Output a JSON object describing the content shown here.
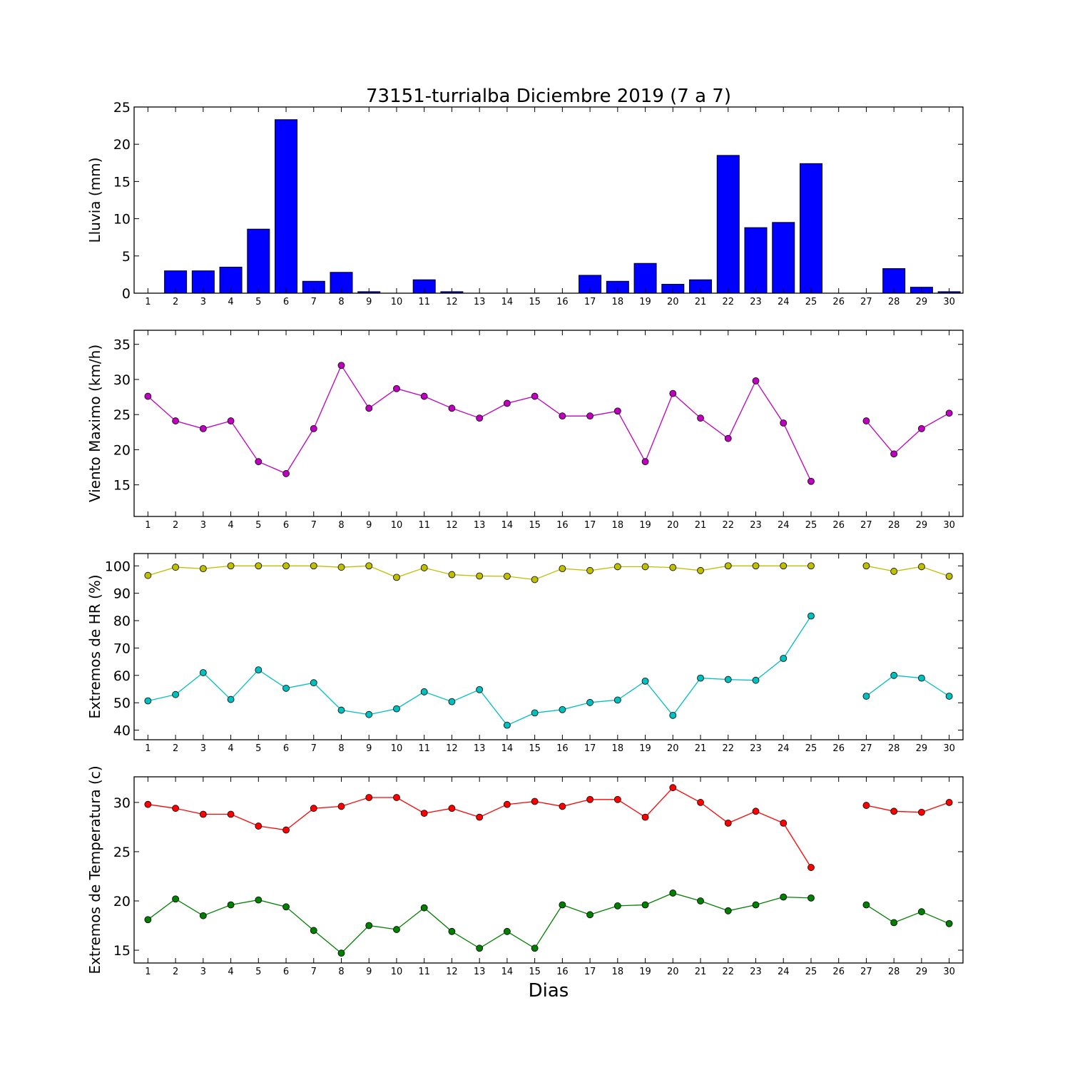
{
  "title": "73151-turrialba Diciembre 2019  (7 a 7)",
  "xlabel": "Dias",
  "days": [
    1,
    2,
    3,
    4,
    5,
    6,
    7,
    8,
    9,
    10,
    11,
    12,
    13,
    14,
    15,
    16,
    17,
    18,
    19,
    20,
    21,
    22,
    23,
    24,
    25,
    26,
    27,
    28,
    29,
    30
  ],
  "chart_data": [
    {
      "type": "bar",
      "ylabel": "Lluvia (mm)",
      "ylim": [
        0,
        25
      ],
      "yticks": [
        0,
        5,
        10,
        15,
        20,
        25
      ],
      "series": [
        {
          "color": "#0000ff",
          "values": [
            0,
            3.0,
            3.0,
            3.5,
            8.6,
            23.3,
            1.6,
            2.8,
            0.2,
            0,
            1.8,
            0.2,
            0,
            0,
            0,
            0,
            2.4,
            1.6,
            4.0,
            1.2,
            1.8,
            18.5,
            8.8,
            9.5,
            17.4,
            0,
            0,
            3.3,
            0.8,
            0.2
          ]
        }
      ]
    },
    {
      "type": "line",
      "ylabel": "Viento Maximo (km/h)",
      "ylim": [
        10.5,
        37
      ],
      "yticks": [
        15,
        20,
        25,
        30,
        35
      ],
      "series": [
        {
          "color": "#bf00bf",
          "values": [
            27.6,
            24.1,
            23.0,
            24.1,
            18.3,
            16.6,
            23.0,
            32.0,
            25.9,
            28.7,
            27.6,
            25.9,
            24.5,
            26.6,
            27.6,
            24.8,
            24.8,
            25.5,
            18.3,
            28.0,
            24.5,
            21.6,
            29.8,
            23.8,
            15.5,
            null,
            24.1,
            19.4,
            23.0,
            25.2
          ]
        }
      ]
    },
    {
      "type": "line",
      "ylabel": "Extremos de HR (%)",
      "ylim": [
        36.5,
        104.5
      ],
      "yticks": [
        40,
        50,
        60,
        70,
        80,
        90,
        100
      ],
      "series": [
        {
          "color": "#bfbf00",
          "values": [
            96.5,
            99.5,
            99.0,
            100,
            100,
            100,
            100,
            99.5,
            100,
            95.8,
            99.3,
            96.8,
            96.3,
            96.2,
            95.0,
            99.0,
            98.3,
            99.7,
            99.7,
            99.4,
            98.3,
            100,
            100,
            100,
            100,
            null,
            100,
            98.0,
            99.7,
            96.2
          ]
        },
        {
          "color": "#00bfbf",
          "values": [
            50.7,
            53.0,
            61.0,
            51.2,
            62.0,
            55.3,
            57.3,
            47.3,
            45.7,
            47.8,
            54.0,
            50.4,
            54.8,
            41.8,
            46.3,
            47.5,
            50.1,
            51.0,
            57.9,
            45.4,
            59.0,
            58.5,
            58.2,
            66.2,
            81.7,
            null,
            52.4,
            60.0,
            59.0,
            52.4
          ]
        }
      ]
    },
    {
      "type": "line",
      "ylabel": "Extremos de Temperatura (c)",
      "ylim": [
        13.7,
        32.6
      ],
      "yticks": [
        15,
        20,
        25,
        30
      ],
      "series": [
        {
          "color": "#ff0000",
          "values": [
            29.8,
            29.4,
            28.8,
            28.8,
            27.6,
            27.2,
            29.4,
            29.6,
            30.5,
            30.5,
            28.9,
            29.4,
            28.5,
            29.8,
            30.1,
            29.6,
            30.3,
            30.3,
            28.5,
            31.5,
            30.0,
            27.9,
            29.1,
            27.9,
            23.4,
            null,
            29.7,
            29.1,
            29.0,
            30.0
          ]
        },
        {
          "color": "#008000",
          "values": [
            18.1,
            20.2,
            18.5,
            19.6,
            20.1,
            19.4,
            17.0,
            14.7,
            17.5,
            17.1,
            19.3,
            16.9,
            15.2,
            16.9,
            15.2,
            19.6,
            18.6,
            19.5,
            19.6,
            20.8,
            20.0,
            19.0,
            19.6,
            20.4,
            20.3,
            null,
            19.6,
            17.8,
            18.9,
            17.7
          ]
        }
      ]
    }
  ]
}
